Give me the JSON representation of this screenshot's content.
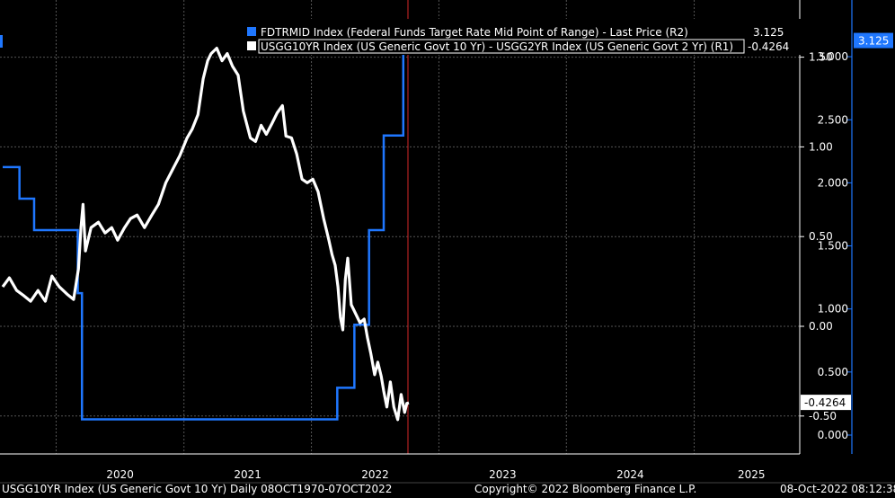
{
  "chart_data": {
    "type": "line",
    "x_axis": {
      "year_labels": [
        "2020",
        "2021",
        "2022",
        "2023",
        "2024",
        "2025"
      ]
    },
    "y_axis_left": {
      "series": "USGG10YR - USGG2YR spread",
      "ylim": [
        -0.62,
        1.82
      ],
      "ticks": [
        1.5,
        1.0,
        0.5,
        0.0,
        -0.5
      ],
      "tick_labels": [
        "1.50",
        "1.00",
        "0.50",
        "0.00",
        "-0.50"
      ]
    },
    "y_axis_right": {
      "series": "FDTRMID",
      "ylim": [
        -0.15,
        3.33
      ],
      "ticks": [
        3.0,
        2.5,
        2.0,
        1.5,
        1.0,
        0.5,
        0.0
      ],
      "tick_labels": [
        "3.000",
        "2.500",
        "2.000",
        "1.500",
        "1.000",
        "0.500",
        "0.000"
      ]
    },
    "grid": true,
    "legend_position": "top-right",
    "legend": [
      {
        "label": "FDTRMID Index (Federal Funds Target Rate Mid Point of Range) - Last Price (R2)",
        "value": "3.125",
        "color": "#1f77ff"
      },
      {
        "label": "USGG10YR Index (US Generic Govt 10 Yr) - USGG2YR Index (US Generic Govt 2 Yr) (R1)",
        "value": "-0.4264",
        "color": "#ffffff"
      }
    ],
    "last_value_labels": {
      "FDTRMID": "3.125",
      "spread": "-0.4264"
    },
    "series": [
      {
        "name": "FDTRMID Index (Federal Funds Target Rate Mid Point of Range) - Last Price (R2)",
        "color": "#1f77ff",
        "step": true,
        "x": [
          "2019-08-01",
          "2019-09-18",
          "2019-10-30",
          "2020-03-03",
          "2020-03-15",
          "2022-03-16",
          "2022-05-04",
          "2022-06-15",
          "2022-07-27",
          "2022-09-21"
        ],
        "values": [
          2.125,
          1.875,
          1.625,
          1.125,
          0.125,
          0.375,
          0.875,
          1.625,
          2.375,
          3.125
        ]
      },
      {
        "name": "USGG10YR Index (US Generic Govt 10 Yr) - USGG2YR Index (US Generic Govt 2 Yr) (R1)",
        "color": "#ffffff",
        "x": [
          "2019-08-01",
          "2019-08-20",
          "2019-09-10",
          "2019-10-01",
          "2019-10-20",
          "2019-11-10",
          "2019-12-01",
          "2019-12-20",
          "2020-01-10",
          "2020-02-01",
          "2020-02-20",
          "2020-03-05",
          "2020-03-12",
          "2020-03-18",
          "2020-03-25",
          "2020-04-10",
          "2020-05-01",
          "2020-05-20",
          "2020-06-08",
          "2020-06-25",
          "2020-07-15",
          "2020-08-01",
          "2020-08-20",
          "2020-09-10",
          "2020-10-01",
          "2020-10-20",
          "2020-11-10",
          "2020-12-01",
          "2020-12-20",
          "2021-01-10",
          "2021-01-25",
          "2021-02-10",
          "2021-02-25",
          "2021-03-10",
          "2021-03-20",
          "2021-04-05",
          "2021-04-20",
          "2021-05-05",
          "2021-05-20",
          "2021-06-05",
          "2021-06-20",
          "2021-07-10",
          "2021-07-25",
          "2021-08-10",
          "2021-08-25",
          "2021-09-10",
          "2021-09-25",
          "2021-10-10",
          "2021-10-20",
          "2021-11-05",
          "2021-11-20",
          "2021-12-05",
          "2021-12-20",
          "2022-01-05",
          "2022-01-20",
          "2022-02-05",
          "2022-02-20",
          "2022-03-01",
          "2022-03-10",
          "2022-03-18",
          "2022-03-25",
          "2022-04-01",
          "2022-04-08",
          "2022-04-15",
          "2022-04-25",
          "2022-05-05",
          "2022-05-20",
          "2022-06-01",
          "2022-06-10",
          "2022-06-20",
          "2022-07-01",
          "2022-07-10",
          "2022-07-20",
          "2022-07-27",
          "2022-08-05",
          "2022-08-15",
          "2022-08-25",
          "2022-09-05",
          "2022-09-15",
          "2022-09-25",
          "2022-10-01",
          "2022-10-07"
        ],
        "values": [
          0.22,
          0.27,
          0.2,
          0.17,
          0.14,
          0.2,
          0.14,
          0.28,
          0.22,
          0.18,
          0.15,
          0.32,
          0.55,
          0.68,
          0.42,
          0.55,
          0.58,
          0.52,
          0.55,
          0.48,
          0.55,
          0.6,
          0.62,
          0.55,
          0.62,
          0.68,
          0.8,
          0.88,
          0.95,
          1.05,
          1.1,
          1.18,
          1.38,
          1.48,
          1.52,
          1.55,
          1.48,
          1.52,
          1.45,
          1.4,
          1.2,
          1.05,
          1.03,
          1.12,
          1.07,
          1.13,
          1.19,
          1.23,
          1.06,
          1.05,
          0.96,
          0.82,
          0.8,
          0.82,
          0.75,
          0.6,
          0.48,
          0.4,
          0.34,
          0.22,
          0.05,
          -0.02,
          0.26,
          0.38,
          0.12,
          0.08,
          0.02,
          0.04,
          -0.06,
          -0.15,
          -0.27,
          -0.2,
          -0.28,
          -0.36,
          -0.45,
          -0.31,
          -0.45,
          -0.52,
          -0.38,
          -0.48,
          -0.43,
          -0.4264
        ]
      }
    ],
    "footer": {
      "left": "USGG10YR Index (US Generic Govt 10 Yr)  Daily 08OCT1970-07OCT2022",
      "center": "Copyright© 2022 Bloomberg Finance L.P.",
      "right": "08-Oct-2022 08:12:38"
    }
  }
}
